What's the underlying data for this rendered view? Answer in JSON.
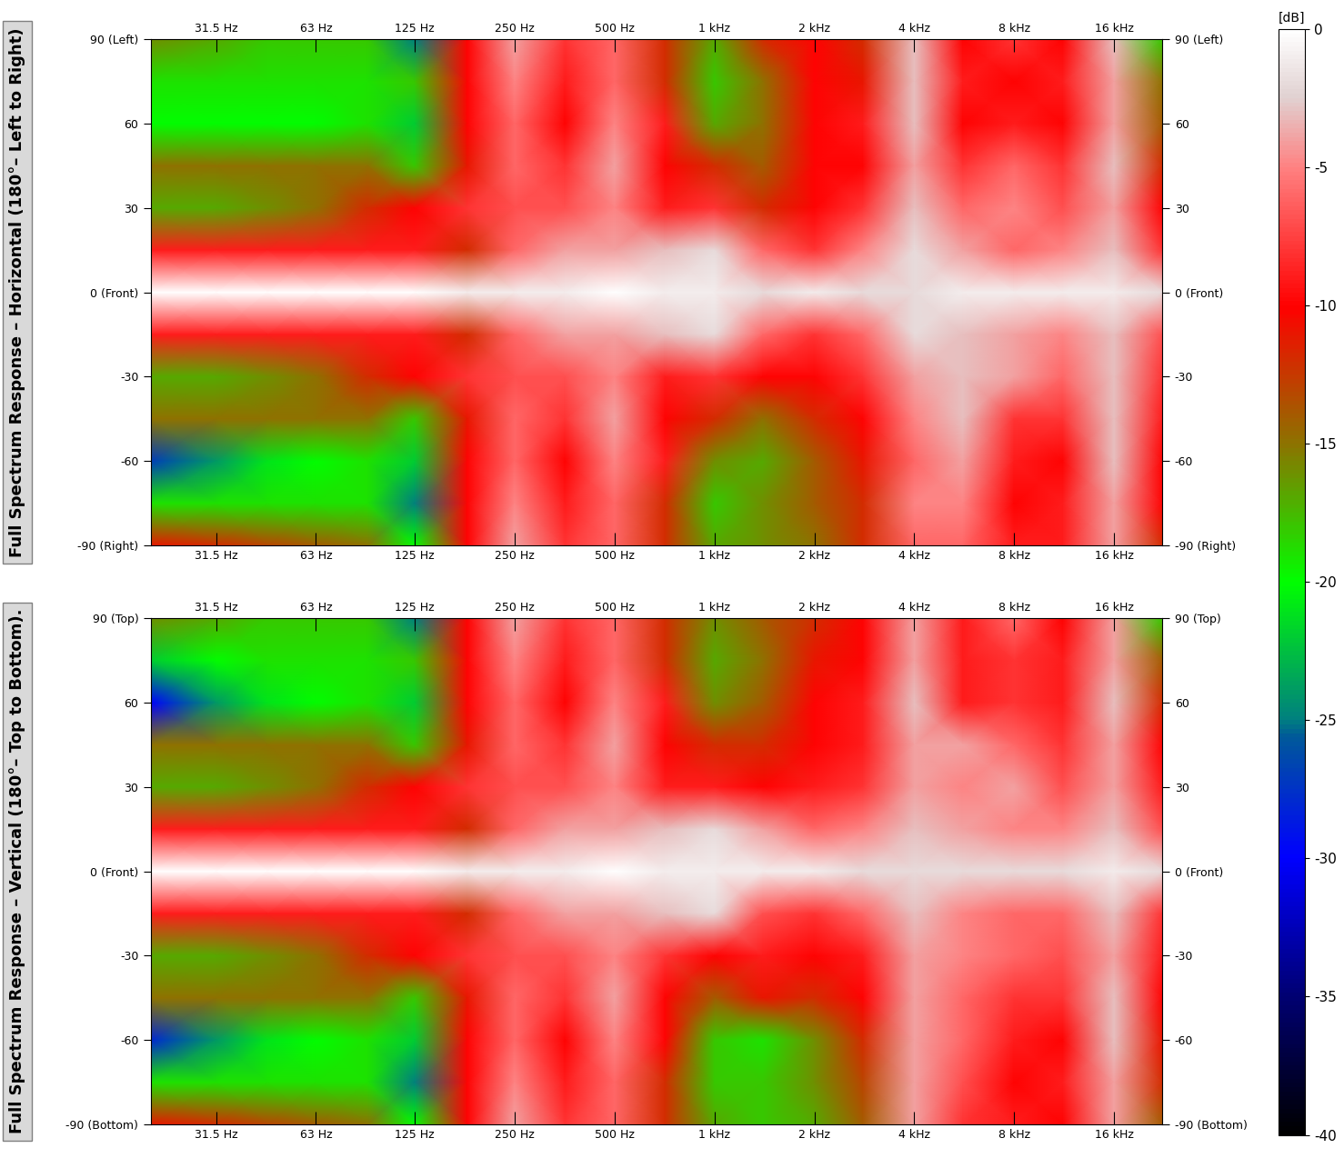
{
  "chart_data": [
    {
      "type": "heatmap",
      "y_label": "Full Spectrum Response – Horizontal (180°– Left to Right)",
      "log": "x",
      "x": [
        20,
        31.5,
        45,
        63,
        90,
        125,
        180,
        250,
        355,
        500,
        710,
        1000,
        1400,
        2000,
        2800,
        4000,
        5600,
        8000,
        11200,
        16000,
        22400
      ],
      "y": [
        90,
        75,
        60,
        45,
        30,
        15,
        0,
        -15,
        -30,
        -45,
        -60,
        -75,
        -90
      ],
      "cells": [
        [
          -16,
          -17,
          -18,
          -18,
          -18,
          -25,
          -10,
          -4,
          -8,
          -6,
          -12,
          -17,
          -12,
          -10,
          -12,
          -3,
          -10,
          -8,
          -10,
          -3,
          -18
        ],
        [
          -19,
          -19,
          -19,
          -19,
          -19,
          -18,
          -10,
          -5,
          -9,
          -6,
          -12,
          -18,
          -15,
          -10,
          -11,
          -3,
          -9,
          -10,
          -9,
          -4,
          -15
        ],
        [
          -20,
          -20,
          -20,
          -20,
          -19,
          -22,
          -10,
          -6,
          -10,
          -5,
          -9,
          -17,
          -15,
          -10,
          -9,
          -3,
          -10,
          -9,
          -10,
          -4,
          -14
        ],
        [
          -15,
          -15,
          -15,
          -15,
          -15,
          -18,
          -11,
          -6,
          -8,
          -4,
          -10,
          -12,
          -14,
          -10,
          -10,
          -4,
          -8,
          -6,
          -8,
          -3,
          -12
        ],
        [
          -17,
          -17,
          -16,
          -15,
          -12,
          -10,
          -8,
          -7,
          -7,
          -5,
          -9,
          -8,
          -12,
          -10,
          -8,
          -3,
          -6,
          -5,
          -7,
          -4,
          -10
        ],
        [
          -9,
          -9,
          -9,
          -9,
          -9,
          -9,
          -12,
          -6,
          -4,
          -4,
          -3,
          -2,
          -6,
          -8,
          -5,
          -2,
          -4,
          -6,
          -5,
          -3,
          -8
        ],
        [
          0,
          0,
          0,
          0,
          0,
          0,
          -1,
          -1,
          -1,
          0,
          -1,
          -1,
          -2,
          -1,
          -2,
          -2,
          -1,
          -1,
          -1,
          -1,
          -2
        ],
        [
          -9,
          -9,
          -9,
          -9,
          -9,
          -9,
          -12,
          -6,
          -4,
          -4,
          -3,
          -2,
          -6,
          -8,
          -6,
          -2,
          -3,
          -4,
          -5,
          -3,
          -7
        ],
        [
          -17,
          -17,
          -16,
          -15,
          -12,
          -10,
          -8,
          -7,
          -7,
          -5,
          -9,
          -8,
          -10,
          -10,
          -8,
          -4,
          -3,
          -4,
          -6,
          -3,
          -8
        ],
        [
          -15,
          -15,
          -15,
          -15,
          -15,
          -18,
          -11,
          -6,
          -8,
          -4,
          -10,
          -12,
          -15,
          -12,
          -10,
          -5,
          -3,
          -8,
          -8,
          -3,
          -9
        ],
        [
          -27,
          -24,
          -21,
          -20,
          -19,
          -22,
          -10,
          -6,
          -10,
          -5,
          -9,
          -16,
          -17,
          -14,
          -11,
          -6,
          -4,
          -9,
          -10,
          -3,
          -10
        ],
        [
          -19,
          -19,
          -19,
          -19,
          -19,
          -25,
          -10,
          -5,
          -9,
          -6,
          -12,
          -18,
          -16,
          -14,
          -12,
          -5,
          -5,
          -10,
          -9,
          -4,
          -10
        ],
        [
          -11,
          -12,
          -13,
          -14,
          -15,
          -20,
          -10,
          -4,
          -8,
          -6,
          -12,
          -17,
          -16,
          -15,
          -12,
          -6,
          -6,
          -9,
          -9,
          -4,
          -12
        ]
      ],
      "xlim": [
        20,
        22400
      ],
      "xticks": [
        {
          "value": 31.5,
          "label": "31.5 Hz"
        },
        {
          "value": 63,
          "label": "63 Hz"
        },
        {
          "value": 125,
          "label": "125 Hz"
        },
        {
          "value": 250,
          "label": "250 Hz"
        },
        {
          "value": 500,
          "label": "500 Hz"
        },
        {
          "value": 1000,
          "label": "1 kHz"
        },
        {
          "value": 2000,
          "label": "2 kHz"
        },
        {
          "value": 4000,
          "label": "4 kHz"
        },
        {
          "value": 8000,
          "label": "8 kHz"
        },
        {
          "value": 16000,
          "label": "16 kHz"
        }
      ],
      "ylim": [
        -90,
        90
      ],
      "yticks": [
        {
          "value": 90,
          "label": "90 (Left)"
        },
        60,
        30,
        {
          "value": 0,
          "label": "0 (Front)"
        },
        -30,
        -60,
        {
          "value": -90,
          "label": "-90 (Right)"
        }
      ]
    },
    {
      "type": "heatmap",
      "y_label": "Full Spectrum Response – Vertical (180°– Top to Bottom).",
      "log": "x",
      "x": [
        20,
        31.5,
        45,
        63,
        90,
        125,
        180,
        250,
        355,
        500,
        710,
        1000,
        1400,
        2000,
        2800,
        4000,
        5600,
        8000,
        11200,
        16000,
        22400
      ],
      "y": [
        90,
        75,
        60,
        45,
        30,
        15,
        0,
        -15,
        -30,
        -45,
        -60,
        -75,
        -90
      ],
      "cells": [
        [
          -16,
          -17,
          -18,
          -18,
          -18,
          -25,
          -10,
          -4,
          -8,
          -6,
          -12,
          -16,
          -14,
          -12,
          -10,
          -4,
          -9,
          -6,
          -10,
          -4,
          -18
        ],
        [
          -22,
          -20,
          -19,
          -19,
          -19,
          -18,
          -10,
          -5,
          -9,
          -6,
          -12,
          -17,
          -15,
          -11,
          -10,
          -4,
          -9,
          -8,
          -9,
          -4,
          -14
        ],
        [
          -30,
          -24,
          -21,
          -20,
          -19,
          -22,
          -10,
          -6,
          -10,
          -5,
          -9,
          -16,
          -14,
          -10,
          -9,
          -3,
          -9,
          -8,
          -9,
          -3,
          -12
        ],
        [
          -15,
          -15,
          -15,
          -15,
          -15,
          -18,
          -11,
          -6,
          -8,
          -4,
          -10,
          -12,
          -12,
          -10,
          -9,
          -4,
          -4,
          -6,
          -8,
          -4,
          -10
        ],
        [
          -17,
          -17,
          -16,
          -15,
          -12,
          -10,
          -8,
          -7,
          -7,
          -5,
          -9,
          -9,
          -10,
          -9,
          -8,
          -4,
          -5,
          -4,
          -7,
          -4,
          -9
        ],
        [
          -9,
          -9,
          -9,
          -9,
          -9,
          -9,
          -12,
          -6,
          -4,
          -4,
          -3,
          -2,
          -4,
          -6,
          -5,
          -3,
          -4,
          -5,
          -5,
          -3,
          -7
        ],
        [
          0,
          0,
          0,
          0,
          0,
          0,
          -1,
          -1,
          -1,
          0,
          -1,
          -1,
          -1,
          -1,
          -2,
          -2,
          -2,
          -2,
          -2,
          -1,
          -2
        ],
        [
          -9,
          -9,
          -9,
          -9,
          -9,
          -9,
          -12,
          -6,
          -4,
          -4,
          -3,
          -2,
          -7,
          -8,
          -6,
          -3,
          -5,
          -6,
          -6,
          -3,
          -8
        ],
        [
          -17,
          -17,
          -16,
          -15,
          -12,
          -10,
          -8,
          -7,
          -7,
          -5,
          -8,
          -10,
          -9,
          -10,
          -9,
          -4,
          -5,
          -6,
          -7,
          -4,
          -9
        ],
        [
          -15,
          -15,
          -15,
          -15,
          -15,
          -18,
          -11,
          -6,
          -8,
          -4,
          -10,
          -14,
          -11,
          -12,
          -10,
          -4,
          -6,
          -8,
          -8,
          -3,
          -10
        ],
        [
          -28,
          -24,
          -21,
          -20,
          -19,
          -22,
          -10,
          -6,
          -10,
          -5,
          -10,
          -18,
          -19,
          -16,
          -12,
          -4,
          -6,
          -9,
          -10,
          -3,
          -11
        ],
        [
          -19,
          -19,
          -19,
          -19,
          -19,
          -25,
          -10,
          -5,
          -9,
          -6,
          -12,
          -18,
          -18,
          -16,
          -13,
          -4,
          -7,
          -10,
          -9,
          -4,
          -12
        ],
        [
          -11,
          -12,
          -13,
          -14,
          -15,
          -20,
          -10,
          -4,
          -8,
          -6,
          -12,
          -17,
          -18,
          -17,
          -14,
          -4,
          -8,
          -9,
          -10,
          -4,
          -14
        ]
      ],
      "xlim": [
        20,
        22400
      ],
      "xticks": [
        {
          "value": 31.5,
          "label": "31.5 Hz"
        },
        {
          "value": 63,
          "label": "63 Hz"
        },
        {
          "value": 125,
          "label": "125 Hz"
        },
        {
          "value": 250,
          "label": "250 Hz"
        },
        {
          "value": 500,
          "label": "500 Hz"
        },
        {
          "value": 1000,
          "label": "1 kHz"
        },
        {
          "value": 2000,
          "label": "2 kHz"
        },
        {
          "value": 4000,
          "label": "4 kHz"
        },
        {
          "value": 8000,
          "label": "8 kHz"
        },
        {
          "value": 16000,
          "label": "16 kHz"
        }
      ],
      "ylim": [
        -90,
        90
      ],
      "yticks": [
        {
          "value": 90,
          "label": "90 (Top)"
        },
        60,
        30,
        {
          "value": 0,
          "label": "0 (Front)"
        },
        -30,
        -60,
        {
          "value": -90,
          "label": "-90 (Bottom)"
        }
      ]
    }
  ],
  "colorbar": {
    "label": "[dB]",
    "range": [
      -40,
      0
    ],
    "ticks": [
      0,
      -5,
      -10,
      -15,
      -20,
      -25,
      -30,
      -35,
      -40
    ]
  }
}
